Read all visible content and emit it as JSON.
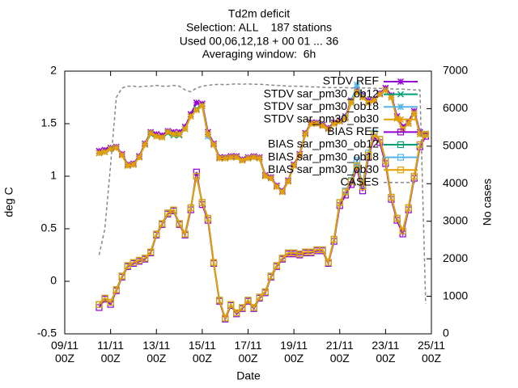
{
  "chart_data": {
    "type": "line",
    "title": "Td2m deficit",
    "subtitle": [
      "Selection: ALL    187 stations",
      "Used 00,06,12,18 + 00 01 ... 36",
      "Averaging window:  6h"
    ],
    "xlabel": "Date",
    "ylabel": "deg C",
    "y2label": "No cases",
    "xlim": [
      0,
      16
    ],
    "xticks": [
      {
        "value": 0,
        "label": "09/11\n00Z"
      },
      {
        "value": 2,
        "label": "11/11\n00Z"
      },
      {
        "value": 4,
        "label": "13/11\n00Z"
      },
      {
        "value": 6,
        "label": "15/11\n00Z"
      },
      {
        "value": 8,
        "label": "17/11\n00Z"
      },
      {
        "value": 10,
        "label": "19/11\n00Z"
      },
      {
        "value": 12,
        "label": "21/11\n00Z"
      },
      {
        "value": 14,
        "label": "23/11\n00Z"
      },
      {
        "value": 16,
        "label": "25/11\n00Z"
      }
    ],
    "ylim": [
      -0.5,
      2
    ],
    "yticks": [
      {
        "value": -0.5,
        "label": "-0.5"
      },
      0,
      0.5,
      1,
      1.5,
      2
    ],
    "y2lim": [
      0,
      7000
    ],
    "y2ticks": [
      0,
      1000,
      2000,
      3000,
      4000,
      5000,
      6000,
      7000
    ],
    "legend": "top-right",
    "x": [
      1.5,
      1.75,
      2,
      2.25,
      2.5,
      2.75,
      3,
      3.25,
      3.5,
      3.75,
      4,
      4.25,
      4.5,
      4.75,
      5,
      5.25,
      5.5,
      5.75,
      6,
      6.25,
      6.5,
      6.75,
      7,
      7.25,
      7.5,
      7.75,
      8,
      8.25,
      8.5,
      8.75,
      9,
      9.25,
      9.5,
      9.75,
      10,
      10.25,
      10.5,
      10.75,
      11,
      11.25,
      11.5,
      11.75,
      12,
      12.25,
      12.5,
      12.75,
      13,
      13.25,
      13.5,
      13.75,
      14,
      14.25,
      14.5,
      14.75,
      15,
      15.25,
      15.5,
      15.75
    ],
    "series": [
      {
        "name": "STDV REF",
        "color": "#9400d3",
        "marker": "star",
        "values": [
          1.24,
          1.25,
          1.27,
          1.28,
          1.21,
          1.11,
          1.12,
          1.19,
          1.31,
          1.42,
          1.4,
          1.39,
          1.43,
          1.42,
          1.42,
          1.47,
          1.59,
          1.7,
          1.69,
          1.42,
          1.31,
          1.18,
          1.18,
          1.19,
          1.19,
          1.16,
          1.18,
          1.19,
          1.18,
          1.01,
          0.99,
          0.91,
          0.86,
          0.96,
          1.11,
          1.21,
          1.41,
          1.51,
          1.51,
          1.49,
          1.46,
          1.51,
          1.53,
          1.57,
          1.72,
          1.82,
          1.77,
          1.72,
          1.73,
          1.79,
          1.84,
          1.77,
          1.57,
          1.47,
          1.52,
          1.62,
          1.42,
          1.4
        ]
      },
      {
        "name": "STDV sar_pm30_ob12",
        "color": "#009e73",
        "marker": "x",
        "values": [
          1.22,
          1.23,
          1.26,
          1.27,
          1.2,
          1.1,
          1.11,
          1.18,
          1.3,
          1.4,
          1.38,
          1.37,
          1.41,
          1.39,
          1.39,
          1.45,
          1.57,
          1.64,
          1.67,
          1.4,
          1.3,
          1.17,
          1.17,
          1.18,
          1.18,
          1.15,
          1.17,
          1.18,
          1.17,
          1.0,
          0.98,
          0.9,
          0.85,
          0.95,
          1.1,
          1.2,
          1.4,
          1.5,
          1.5,
          1.48,
          1.45,
          1.5,
          1.52,
          1.55,
          1.7,
          1.8,
          1.75,
          1.7,
          1.72,
          1.78,
          1.82,
          1.75,
          1.55,
          1.45,
          1.5,
          1.6,
          1.4,
          1.4
        ]
      },
      {
        "name": "STDV sar_pm30_ob18",
        "color": "#56b4e9",
        "marker": "star",
        "values": [
          1.22,
          1.23,
          1.26,
          1.27,
          1.2,
          1.1,
          1.11,
          1.18,
          1.3,
          1.41,
          1.38,
          1.37,
          1.42,
          1.4,
          1.4,
          1.45,
          1.57,
          1.63,
          1.67,
          1.38,
          1.3,
          1.17,
          1.17,
          1.18,
          1.18,
          1.15,
          1.17,
          1.18,
          1.17,
          1.0,
          0.98,
          0.9,
          0.85,
          0.95,
          1.1,
          1.2,
          1.4,
          1.5,
          1.5,
          1.48,
          1.45,
          1.5,
          1.52,
          1.56,
          1.71,
          1.87,
          1.76,
          1.7,
          1.72,
          1.78,
          1.82,
          1.75,
          1.55,
          1.45,
          1.5,
          1.6,
          1.4,
          1.4
        ]
      },
      {
        "name": "STDV sar_pm30_ob30",
        "color": "#e69f00",
        "marker": "star",
        "values": [
          1.22,
          1.23,
          1.26,
          1.27,
          1.2,
          1.1,
          1.11,
          1.18,
          1.3,
          1.41,
          1.38,
          1.37,
          1.42,
          1.4,
          1.4,
          1.45,
          1.57,
          1.63,
          1.67,
          1.4,
          1.3,
          1.17,
          1.17,
          1.18,
          1.18,
          1.15,
          1.17,
          1.18,
          1.17,
          1.0,
          0.98,
          0.9,
          0.85,
          0.95,
          1.1,
          1.2,
          1.4,
          1.5,
          1.5,
          1.48,
          1.45,
          1.5,
          1.52,
          1.55,
          1.7,
          1.8,
          1.75,
          1.7,
          1.72,
          1.78,
          1.82,
          1.75,
          1.55,
          1.45,
          1.5,
          1.6,
          1.4,
          1.4
        ]
      },
      {
        "name": "BIAS REF",
        "color": "#9400d3",
        "marker": "square",
        "values": [
          -0.25,
          -0.17,
          -0.22,
          -0.09,
          0.04,
          0.14,
          0.17,
          0.19,
          0.21,
          0.27,
          0.44,
          0.54,
          0.64,
          0.67,
          0.54,
          0.44,
          0.68,
          1.04,
          0.73,
          0.58,
          0.17,
          -0.19,
          -0.36,
          -0.23,
          -0.31,
          -0.26,
          -0.19,
          -0.26,
          -0.16,
          -0.11,
          0.04,
          0.14,
          0.21,
          0.26,
          0.26,
          0.25,
          0.27,
          0.27,
          0.29,
          0.29,
          0.17,
          0.38,
          0.72,
          0.82,
          0.92,
          1.08,
          0.86,
          1.18,
          1.37,
          1.32,
          1.12,
          0.78,
          0.58,
          0.45,
          0.68,
          0.98,
          1.28,
          1.38
        ]
      },
      {
        "name": "BIAS sar_pm30_ob12",
        "color": "#009e73",
        "marker": "square",
        "values": [
          -0.22,
          -0.16,
          -0.2,
          -0.08,
          0.05,
          0.15,
          0.18,
          0.2,
          0.22,
          0.28,
          0.45,
          0.55,
          0.65,
          0.68,
          0.55,
          0.45,
          0.7,
          1.0,
          0.75,
          0.6,
          0.18,
          -0.18,
          -0.35,
          -0.22,
          -0.3,
          -0.25,
          -0.18,
          -0.25,
          -0.15,
          -0.1,
          0.05,
          0.15,
          0.22,
          0.27,
          0.27,
          0.26,
          0.28,
          0.28,
          0.3,
          0.3,
          0.18,
          0.4,
          0.75,
          0.85,
          0.95,
          1.1,
          0.9,
          1.2,
          1.4,
          1.35,
          1.15,
          0.8,
          0.6,
          0.48,
          0.7,
          1.0,
          1.3,
          1.4
        ]
      },
      {
        "name": "BIAS sar_pm30_ob18",
        "color": "#56b4e9",
        "marker": "square",
        "values": [
          -0.22,
          -0.16,
          -0.2,
          -0.08,
          0.05,
          0.15,
          0.18,
          0.2,
          0.22,
          0.28,
          0.45,
          0.55,
          0.65,
          0.68,
          0.55,
          0.45,
          0.7,
          1.0,
          0.75,
          0.6,
          0.18,
          -0.18,
          -0.35,
          -0.22,
          -0.3,
          -0.25,
          -0.18,
          -0.25,
          -0.15,
          -0.1,
          0.05,
          0.15,
          0.22,
          0.27,
          0.27,
          0.26,
          0.28,
          0.28,
          0.3,
          0.3,
          0.18,
          0.4,
          0.75,
          0.86,
          0.96,
          1.15,
          0.92,
          1.22,
          1.41,
          1.35,
          1.15,
          0.8,
          0.6,
          0.48,
          0.7,
          1.0,
          1.3,
          1.4
        ]
      },
      {
        "name": "BIAS sar_pm30_ob30",
        "color": "#e69f00",
        "marker": "square",
        "values": [
          -0.22,
          -0.16,
          -0.2,
          -0.08,
          0.05,
          0.15,
          0.18,
          0.2,
          0.22,
          0.28,
          0.45,
          0.55,
          0.65,
          0.68,
          0.55,
          0.45,
          0.7,
          1.0,
          0.75,
          0.6,
          0.18,
          -0.18,
          -0.35,
          -0.22,
          -0.3,
          -0.25,
          -0.18,
          -0.25,
          -0.15,
          -0.1,
          0.05,
          0.15,
          0.22,
          0.27,
          0.27,
          0.26,
          0.28,
          0.28,
          0.3,
          0.3,
          0.18,
          0.4,
          0.75,
          0.85,
          0.95,
          1.1,
          0.9,
          1.2,
          1.4,
          1.35,
          1.15,
          0.8,
          0.6,
          0.48,
          0.7,
          1.0,
          1.3,
          1.4
        ]
      },
      {
        "name": "CASES",
        "color": "#888888",
        "marker": "none",
        "dash": true,
        "axis": "y2",
        "values": [
          2100,
          2800,
          4500,
          6300,
          6550,
          6600,
          6600,
          6580,
          6600,
          6600,
          6620,
          6600,
          6600,
          6620,
          6600,
          6500,
          6450,
          6550,
          6600,
          6620,
          6640,
          6650,
          6640,
          6650,
          6660,
          6650,
          6660,
          6650,
          6650,
          6640,
          6630,
          6620,
          6610,
          6600,
          6600,
          6600,
          6590,
          6580,
          6580,
          6570,
          6560,
          6560,
          6560,
          6560,
          6550,
          6550,
          6550,
          6550,
          6540,
          6540,
          6530,
          6530,
          6520,
          6520,
          6510,
          6500,
          6500,
          800
        ]
      }
    ]
  }
}
